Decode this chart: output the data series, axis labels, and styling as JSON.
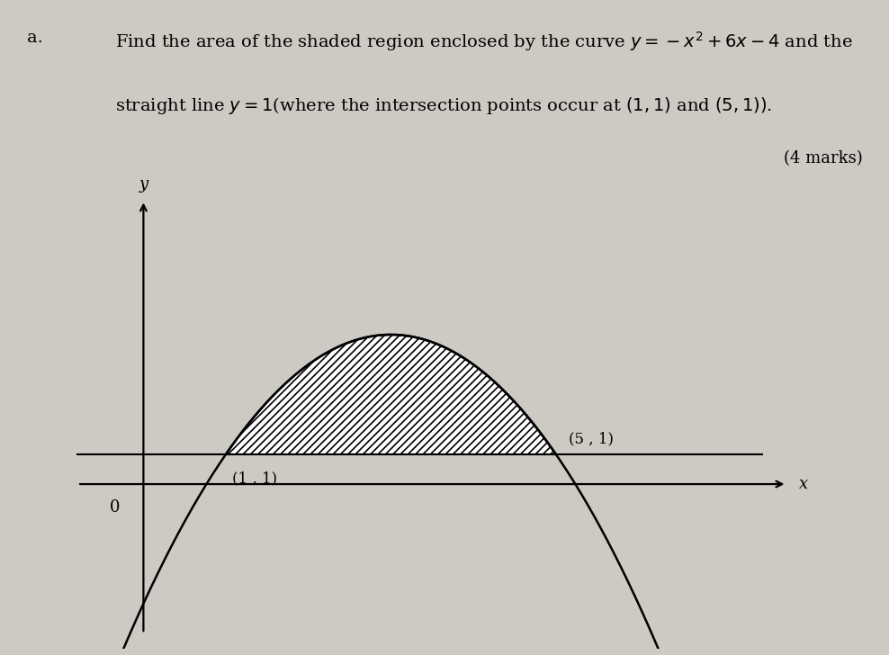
{
  "bg_color": "#cdc9c3",
  "title_a": "a.",
  "q_line1": "Find the area of the shaded region enclosed by the curve $y = -x^2 + 6x - 4$ and the",
  "q_line2": "straight line $y = 1$(where the intersection points occur at $(1,1)$ and $(5,1))$.",
  "marks_text": "(4 marks)",
  "xlabel": "x",
  "ylabel": "y",
  "label_0": "0",
  "point1_label": "(1 , 1)",
  "point2_label": "(5 , 1)",
  "x_intersect1": 1.0,
  "x_intersect2": 5.0,
  "y_line": 1.0,
  "xlim": [
    -1.2,
    8.5
  ],
  "ylim": [
    -5.5,
    10.5
  ],
  "x_axis_start": -0.8,
  "x_axis_end": 7.8,
  "y_axis_start": -5.0,
  "y_axis_end": 9.5,
  "x_curve_start": -0.3,
  "x_curve_end": 6.7,
  "x_line_start": -0.8,
  "x_line_end": 7.5,
  "text_fontsize": 14,
  "marks_fontsize": 13,
  "graph_fontsize": 13,
  "hatch_linewidth": 1.2,
  "curve_linewidth": 1.8,
  "axis_linewidth": 1.6
}
